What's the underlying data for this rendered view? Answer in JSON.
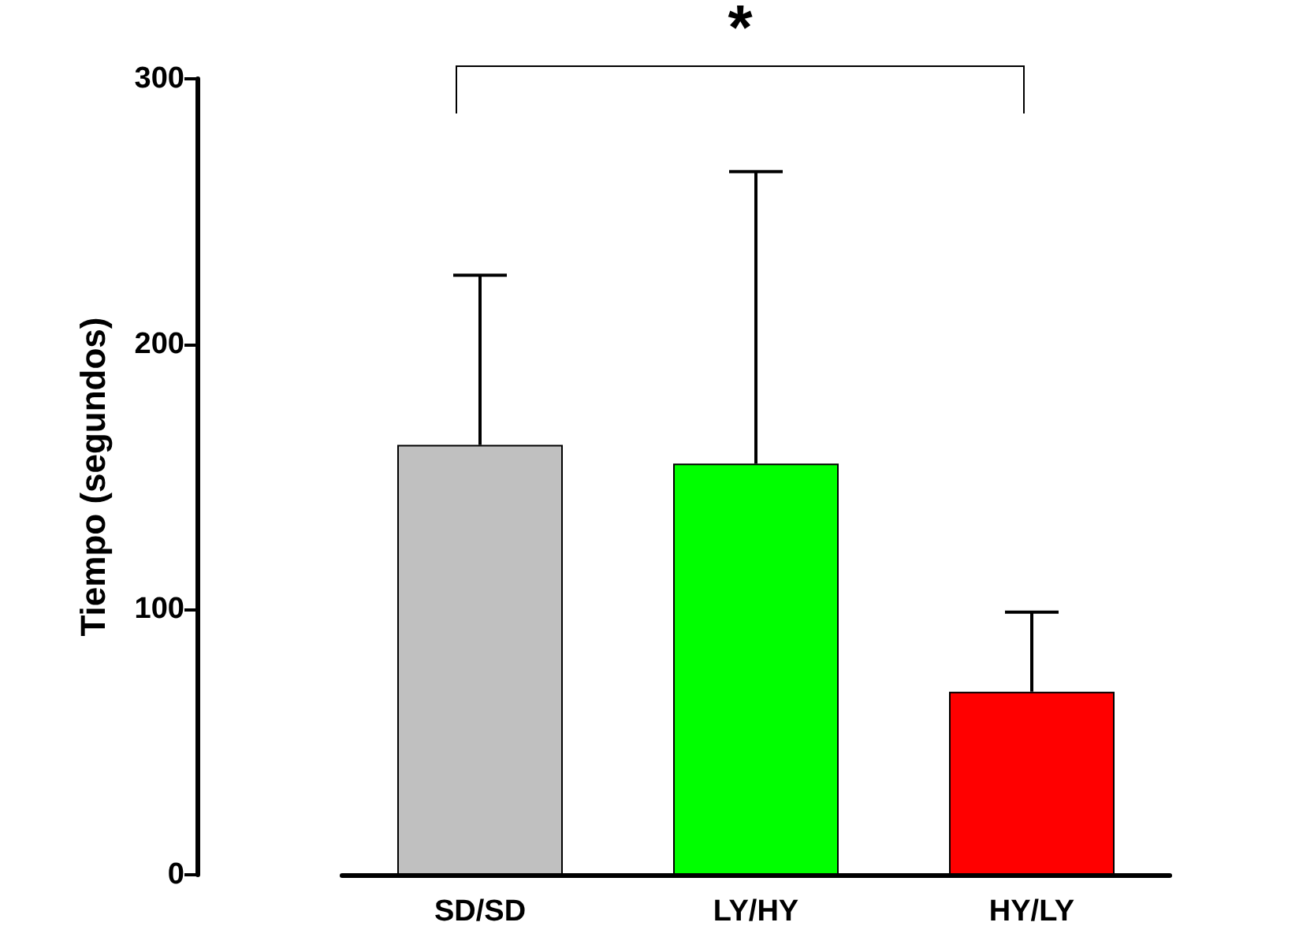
{
  "chart_data": {
    "type": "bar",
    "ylabel": "Tiempo (segundos)",
    "categories": [
      "SD/SD",
      "LY/HY",
      "HY/LY"
    ],
    "values": [
      162,
      155,
      69
    ],
    "colors": [
      "#c0c0c0",
      "#00ff00",
      "#ff0000"
    ],
    "errors": [
      [
        162,
        226
      ],
      [
        155,
        265
      ],
      [
        69,
        99
      ]
    ],
    "ylim": [
      0,
      300
    ],
    "yticks": [
      0,
      100,
      200,
      300
    ],
    "grid": false,
    "annotations": [
      "*"
    ]
  }
}
